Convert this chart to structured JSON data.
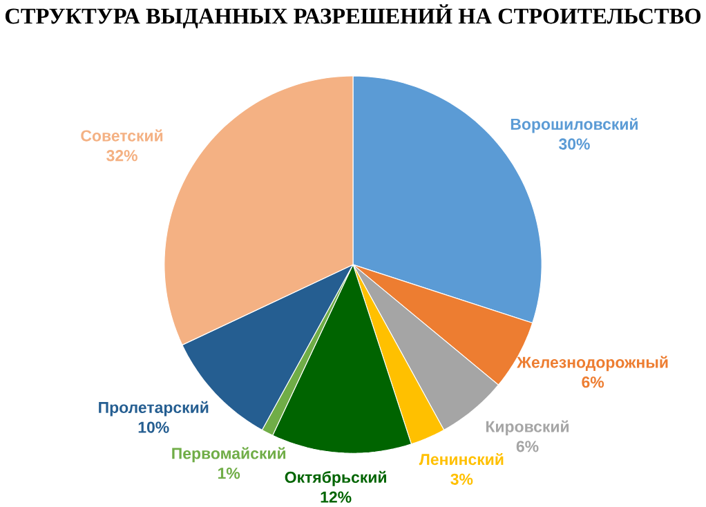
{
  "chart_data": {
    "type": "pie",
    "title": "СТРУКТУРА ВЫДАННЫХ РАЗРЕШЕНИЙ НА СТРОИТЕЛЬСТВО",
    "categories": [
      "Ворошиловский",
      "Железнодорожный",
      "Кировский",
      "Ленинский",
      "Октябрьский",
      "Первомайский",
      "Пролетарский",
      "Советский"
    ],
    "values": [
      30,
      6,
      6,
      3,
      12,
      1,
      10,
      32
    ],
    "value_labels": [
      "30%",
      "6%",
      "6%",
      "3%",
      "12%",
      "1%",
      "10%",
      "32%"
    ],
    "colors": [
      "#5b9bd5",
      "#ed7d31",
      "#a5a5a5",
      "#ffc000",
      "#006400",
      "#70ad47",
      "#255e91",
      "#f4b183"
    ]
  }
}
